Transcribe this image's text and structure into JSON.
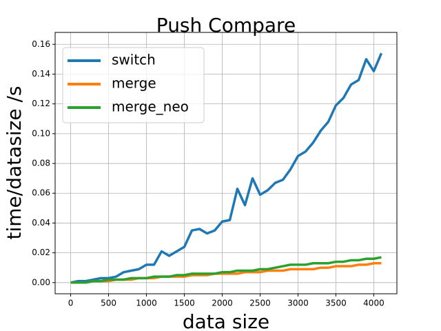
{
  "chart_data": {
    "type": "line",
    "title": "Push Compare",
    "x_label": "data size",
    "y_label": "time/datasize /s",
    "x": [
      0,
      100,
      200,
      300,
      400,
      500,
      600,
      700,
      800,
      900,
      1000,
      1100,
      1200,
      1300,
      1400,
      1500,
      1600,
      1700,
      1800,
      1900,
      2000,
      2100,
      2200,
      2300,
      2400,
      2500,
      2600,
      2700,
      2800,
      2900,
      3000,
      3100,
      3200,
      3300,
      3400,
      3500,
      3600,
      3700,
      3800,
      3900,
      4000,
      4100
    ],
    "series": [
      {
        "name": "switch",
        "color": "#1f77b4",
        "values": [
          0,
          0.001,
          0.001,
          0.002,
          0.003,
          0.003,
          0.004,
          0.007,
          0.008,
          0.009,
          0.012,
          0.012,
          0.021,
          0.018,
          0.021,
          0.024,
          0.035,
          0.036,
          0.033,
          0.035,
          0.041,
          0.042,
          0.063,
          0.052,
          0.07,
          0.059,
          0.062,
          0.067,
          0.069,
          0.076,
          0.085,
          0.088,
          0.094,
          0.102,
          0.108,
          0.119,
          0.124,
          0.133,
          0.136,
          0.15,
          0.142,
          0.154
        ]
      },
      {
        "name": "merge",
        "color": "#ff7f0e",
        "values": [
          0,
          0,
          0,
          0.001,
          0.001,
          0.001,
          0.002,
          0.002,
          0.002,
          0.003,
          0.003,
          0.003,
          0.004,
          0.004,
          0.004,
          0.004,
          0.005,
          0.005,
          0.005,
          0.006,
          0.006,
          0.006,
          0.006,
          0.007,
          0.007,
          0.007,
          0.008,
          0.008,
          0.008,
          0.009,
          0.009,
          0.009,
          0.009,
          0.01,
          0.01,
          0.011,
          0.011,
          0.011,
          0.012,
          0.012,
          0.013,
          0.013
        ]
      },
      {
        "name": "merge_neo",
        "color": "#2ca02c",
        "values": [
          0,
          0,
          0,
          0.001,
          0.001,
          0.002,
          0.002,
          0.002,
          0.003,
          0.003,
          0.003,
          0.004,
          0.004,
          0.004,
          0.005,
          0.005,
          0.006,
          0.006,
          0.006,
          0.006,
          0.007,
          0.007,
          0.008,
          0.008,
          0.008,
          0.009,
          0.009,
          0.01,
          0.011,
          0.012,
          0.012,
          0.012,
          0.013,
          0.013,
          0.013,
          0.014,
          0.014,
          0.015,
          0.015,
          0.016,
          0.016,
          0.017
        ]
      }
    ],
    "xlim": [
      -205,
      4305
    ],
    "ylim": [
      -0.0075,
      0.168
    ],
    "xticks": [
      0,
      500,
      1000,
      1500,
      2000,
      2500,
      3000,
      3500,
      4000
    ],
    "yticks": [
      {
        "value": 0,
        "label": "0.00"
      },
      {
        "value": 0.02,
        "label": "0.02"
      },
      {
        "value": 0.04,
        "label": "0.04"
      },
      {
        "value": 0.06,
        "label": "0.06"
      },
      {
        "value": 0.08,
        "label": "0.08"
      },
      {
        "value": 0.1,
        "label": "0.10"
      },
      {
        "value": 0.12,
        "label": "0.12"
      },
      {
        "value": 0.14,
        "label": "0.14"
      },
      {
        "value": 0.16,
        "label": "0.16"
      }
    ],
    "grid": true,
    "legend": "upper-left"
  }
}
